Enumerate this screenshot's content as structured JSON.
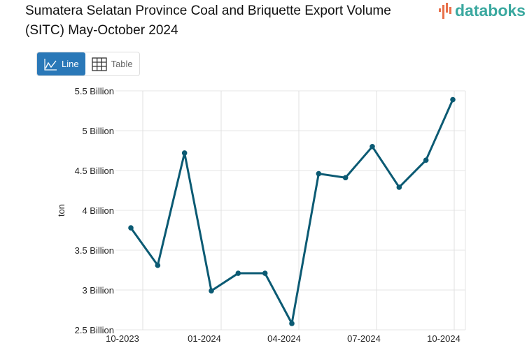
{
  "title": "Sumatera Selatan Province Coal and Briquette Export Volume (SITC) May-October 2024",
  "logo": "databoks",
  "toggle": {
    "line_label": "Line",
    "table_label": "Table"
  },
  "colors": {
    "line": "#0b5a73",
    "active": "#2a78b8"
  },
  "chart_data": {
    "type": "line",
    "ylabel": "ton",
    "ylim": [
      2.5,
      5.5
    ],
    "yticks": [
      {
        "v": 2.5,
        "label": "2.5 Billion"
      },
      {
        "v": 3,
        "label": "3 Billion"
      },
      {
        "v": 3.5,
        "label": "3.5 Billion"
      },
      {
        "v": 4,
        "label": "4 Billion"
      },
      {
        "v": 4.5,
        "label": "4.5 Billion"
      },
      {
        "v": 5,
        "label": "5 Billion"
      },
      {
        "v": 5.5,
        "label": "5.5 Billion"
      }
    ],
    "xtick_labels": [
      "10-2023",
      "01-2024",
      "04-2024",
      "07-2024",
      "10-2024"
    ],
    "x": [
      "10-2023",
      "11-2023",
      "12-2023",
      "01-2024",
      "02-2024",
      "03-2024",
      "04-2024",
      "05-2024",
      "06-2024",
      "07-2024",
      "08-2024",
      "09-2024",
      "10-2024"
    ],
    "series": [
      {
        "name": "Export Volume",
        "unit": "billion ton",
        "values": [
          3.78,
          3.31,
          4.72,
          2.99,
          3.21,
          3.21,
          2.58,
          4.46,
          4.41,
          4.8,
          4.29,
          4.63,
          5.39
        ]
      }
    ],
    "grid": true,
    "legend": "none"
  }
}
